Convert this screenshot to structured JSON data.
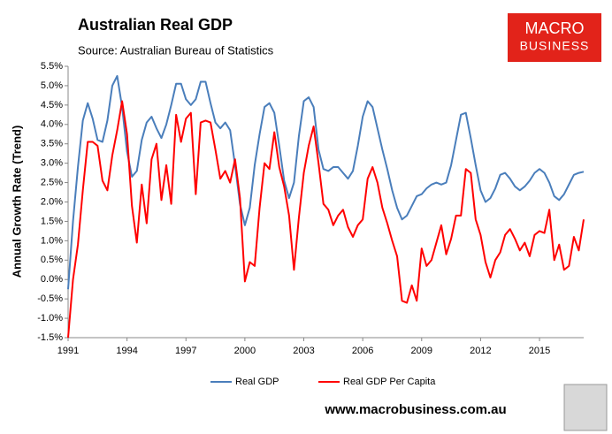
{
  "chart_data": {
    "type": "line",
    "title": "Australian Real GDP",
    "subtitle": "Source: Australian Bureau of Statistics",
    "y_label": "Annual Growth Rate (Trend)",
    "x": [
      1991,
      1991.25,
      1991.5,
      1991.75,
      1992,
      1992.25,
      1992.5,
      1992.75,
      1993,
      1993.25,
      1993.5,
      1993.75,
      1994,
      1994.25,
      1994.5,
      1994.75,
      1995,
      1995.25,
      1995.5,
      1995.75,
      1996,
      1996.25,
      1996.5,
      1996.75,
      1997,
      1997.25,
      1997.5,
      1997.75,
      1998,
      1998.25,
      1998.5,
      1998.75,
      1999,
      1999.25,
      1999.5,
      1999.75,
      2000,
      2000.25,
      2000.5,
      2000.75,
      2001,
      2001.25,
      2001.5,
      2001.75,
      2002,
      2002.25,
      2002.5,
      2002.75,
      2003,
      2003.25,
      2003.5,
      2003.75,
      2004,
      2004.25,
      2004.5,
      2004.75,
      2005,
      2005.25,
      2005.5,
      2005.75,
      2006,
      2006.25,
      2006.5,
      2006.75,
      2007,
      2007.25,
      2007.5,
      2007.75,
      2008,
      2008.25,
      2008.5,
      2008.75,
      2009,
      2009.25,
      2009.5,
      2009.75,
      2010,
      2010.25,
      2010.5,
      2010.75,
      2011,
      2011.25,
      2011.5,
      2011.75,
      2012,
      2012.25,
      2012.5,
      2012.75,
      2013,
      2013.25,
      2013.5,
      2013.75,
      2014,
      2014.25,
      2014.5,
      2014.75,
      2015,
      2015.25,
      2015.5,
      2015.75,
      2016,
      2016.25,
      2016.5,
      2016.75,
      2017,
      2017.25
    ],
    "series": [
      {
        "name": "Real GDP",
        "color": "#4a7ebb",
        "values": [
          -0.25,
          1.5,
          2.9,
          4.1,
          4.55,
          4.15,
          3.6,
          3.55,
          4.1,
          5.0,
          5.25,
          4.45,
          3.3,
          2.65,
          2.8,
          3.6,
          4.05,
          4.2,
          3.9,
          3.65,
          4.0,
          4.5,
          5.05,
          5.05,
          4.65,
          4.5,
          4.65,
          5.1,
          5.1,
          4.55,
          4.05,
          3.9,
          4.05,
          3.85,
          2.95,
          1.95,
          1.4,
          1.85,
          2.95,
          3.75,
          4.45,
          4.55,
          4.3,
          3.45,
          2.55,
          2.1,
          2.5,
          3.7,
          4.6,
          4.7,
          4.45,
          3.35,
          2.85,
          2.8,
          2.9,
          2.9,
          2.75,
          2.6,
          2.8,
          3.45,
          4.2,
          4.6,
          4.45,
          3.9,
          3.35,
          2.85,
          2.3,
          1.85,
          1.55,
          1.65,
          1.9,
          2.15,
          2.2,
          2.35,
          2.45,
          2.5,
          2.45,
          2.5,
          2.95,
          3.6,
          4.25,
          4.3,
          3.65,
          2.95,
          2.3,
          2.0,
          2.1,
          2.35,
          2.7,
          2.75,
          2.6,
          2.4,
          2.3,
          2.4,
          2.55,
          2.75,
          2.85,
          2.75,
          2.5,
          2.15,
          2.05,
          2.2,
          2.45,
          2.7,
          2.75,
          2.78
        ]
      },
      {
        "name": "Real GDP Per Capita",
        "color": "#ff0000",
        "values": [
          -1.5,
          0.0,
          0.9,
          2.3,
          3.55,
          3.55,
          3.45,
          2.55,
          2.3,
          3.2,
          3.85,
          4.6,
          3.75,
          1.9,
          0.95,
          2.45,
          1.45,
          3.1,
          3.5,
          2.05,
          2.95,
          1.95,
          4.25,
          3.55,
          4.15,
          4.3,
          2.2,
          4.05,
          4.1,
          4.05,
          3.35,
          2.6,
          2.8,
          2.5,
          3.1,
          2.1,
          -0.05,
          0.45,
          0.35,
          1.85,
          3.0,
          2.85,
          3.8,
          2.9,
          2.4,
          1.65,
          0.25,
          1.6,
          2.75,
          3.45,
          3.95,
          3.0,
          1.95,
          1.8,
          1.4,
          1.65,
          1.8,
          1.35,
          1.1,
          1.4,
          1.55,
          2.6,
          2.9,
          2.5,
          1.85,
          1.45,
          1.0,
          0.6,
          -0.55,
          -0.6,
          -0.15,
          -0.55,
          0.8,
          0.35,
          0.5,
          0.95,
          1.4,
          0.65,
          1.05,
          1.65,
          1.65,
          2.85,
          2.75,
          1.55,
          1.15,
          0.45,
          0.05,
          0.5,
          0.7,
          1.15,
          1.3,
          1.05,
          0.75,
          0.95,
          0.6,
          1.15,
          1.25,
          1.2,
          1.8,
          0.5,
          0.9,
          0.25,
          0.35,
          1.1,
          0.75,
          1.55
        ]
      }
    ],
    "xlim": [
      1991,
      2017.25
    ],
    "xticks": [
      1991,
      1994,
      1997,
      2000,
      2003,
      2006,
      2009,
      2012,
      2015
    ],
    "ylim": [
      -1.5,
      5.5
    ],
    "yticks": [
      {
        "value": -1.5,
        "label": "-1.5%"
      },
      {
        "value": -1.0,
        "label": "-1.0%"
      },
      {
        "value": -0.5,
        "label": "-0.5%"
      },
      {
        "value": 0,
        "label": "0.0%"
      },
      {
        "value": 0.5,
        "label": "0.5%"
      },
      {
        "value": 1.0,
        "label": "1.0%"
      },
      {
        "value": 1.5,
        "label": "1.5%"
      },
      {
        "value": 2.0,
        "label": "2.0%"
      },
      {
        "value": 2.5,
        "label": "2.5%"
      },
      {
        "value": 3.0,
        "label": "3.0%"
      },
      {
        "value": 3.5,
        "label": "3.5%"
      },
      {
        "value": 4.0,
        "label": "4.0%"
      },
      {
        "value": 4.5,
        "label": "4.5%"
      },
      {
        "value": 5.0,
        "label": "5.0%"
      },
      {
        "value": 5.5,
        "label": "5.5%"
      }
    ],
    "grid": false,
    "legend": "bottom"
  },
  "branding": {
    "logo_top": "MACRO",
    "logo_bottom": "BUSINESS",
    "url": "www.macrobusiness.com.au"
  }
}
